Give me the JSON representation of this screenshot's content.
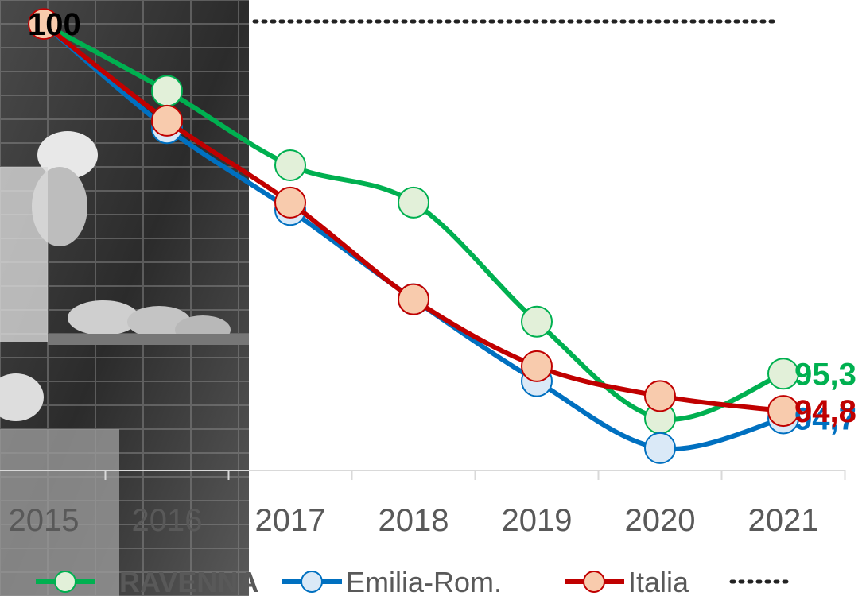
{
  "chart_data": {
    "type": "line",
    "categories": [
      "2015",
      "2016",
      "2017",
      "2018",
      "2019",
      "2020",
      "2021"
    ],
    "series": [
      {
        "name": "RAVENNA",
        "color": "#00b050",
        "marker_fill": "#e2f0d9",
        "values": [
          100,
          99.1,
          98.1,
          97.6,
          96.0,
          94.7,
          95.3
        ],
        "value_labels": [
          null,
          null,
          null,
          null,
          null,
          null,
          "95,3"
        ]
      },
      {
        "name": "Emilia-Rom.",
        "color": "#0070c0",
        "marker_fill": "#dae9f7",
        "values": [
          100,
          98.6,
          97.5,
          96.3,
          95.2,
          94.3,
          94.7
        ],
        "value_labels": [
          null,
          null,
          null,
          null,
          null,
          null,
          "94,7"
        ]
      },
      {
        "name": "Italia",
        "color": "#c00000",
        "marker_fill": "#f8cbad",
        "values": [
          100,
          98.7,
          97.6,
          96.3,
          95.4,
          95.0,
          94.8
        ],
        "value_labels": [
          "100",
          null,
          null,
          null,
          null,
          null,
          "94,8"
        ]
      }
    ],
    "ylim": [
      94,
      100.3
    ],
    "smooth": true
  }
}
